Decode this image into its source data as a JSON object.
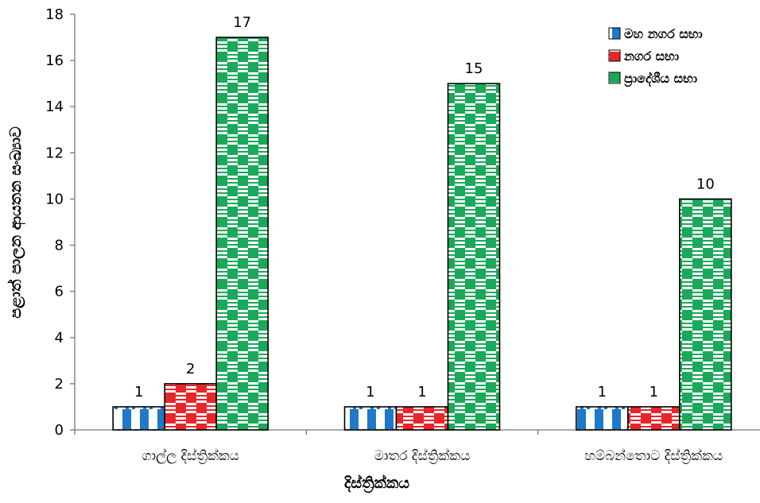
{
  "chart_data": {
    "type": "bar",
    "categories": [
      "ගාල්ල දිස්ත්‍රික්කය",
      "මාතර දිස්ත්‍රික්කය",
      "හම්බන්තොට දිස්ත්‍රික්කය"
    ],
    "series": [
      {
        "name": "මහ නගර සභා",
        "values": [
          1,
          1,
          1
        ],
        "color": "#1f78c8",
        "pattern": "vertical-stripes-with-checker-top"
      },
      {
        "name": "නගර සභා",
        "values": [
          2,
          1,
          1
        ],
        "color": "#e8262a",
        "pattern": "checker"
      },
      {
        "name": "ප්‍රාදේශීය සභා",
        "values": [
          17,
          15,
          10
        ],
        "color": "#1aa85a",
        "pattern": "checker"
      }
    ],
    "xlabel": "දිස්ත්‍රික්කය",
    "ylabel": "පළාත් පාලන ආයතන සංඛ්‍යාව",
    "ylim": [
      0,
      18
    ],
    "yticks": [
      0,
      2,
      4,
      6,
      8,
      10,
      12,
      14,
      16,
      18
    ],
    "data_labels": true,
    "grid": false,
    "legend_position": "top-right"
  }
}
